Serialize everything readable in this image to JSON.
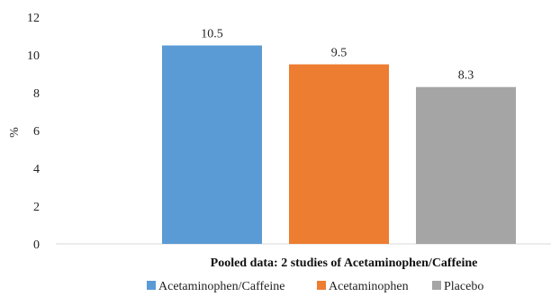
{
  "chart_data": {
    "type": "bar",
    "categories": [
      "Pooled data: 2 studies of Acetaminophen/Caffeine"
    ],
    "series": [
      {
        "name": "Acetaminophen/Caffeine",
        "values": [
          10.5
        ],
        "label": "10.5",
        "color": "#5B9BD5"
      },
      {
        "name": "Acetaminophen",
        "values": [
          9.5
        ],
        "label": "9.5",
        "color": "#ED7D31"
      },
      {
        "name": "Placebo",
        "values": [
          8.3
        ],
        "label": "8.3",
        "color": "#A5A5A5"
      }
    ],
    "xlabel": "Pooled data: 2 studies of Acetaminophen/Caffeine",
    "ylabel": "%",
    "ylim": [
      0,
      12
    ],
    "yticks": [
      "0",
      "2",
      "4",
      "6",
      "8",
      "10",
      "12"
    ],
    "grid": false,
    "legend": "bottom"
  }
}
